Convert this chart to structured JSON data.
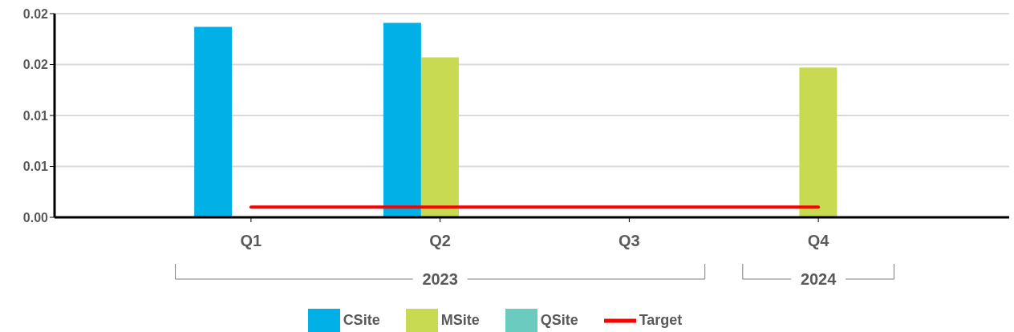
{
  "chart_data": {
    "type": "bar",
    "categories": [
      "Q1",
      "Q2",
      "Q3",
      "Q4"
    ],
    "series": [
      {
        "name": "CSite",
        "color": "#00b0e6",
        "values": [
          0.0187,
          0.0191,
          null,
          null
        ]
      },
      {
        "name": "MSite",
        "color": "#c8d952",
        "values": [
          null,
          0.0157,
          null,
          0.0147
        ]
      },
      {
        "name": "QSite",
        "color": "#6ccbbf",
        "values": [
          null,
          null,
          null,
          null
        ]
      },
      {
        "name": "Target",
        "type": "line",
        "color": "#ff0000",
        "values": [
          0.001,
          0.001,
          0.001,
          0.001
        ]
      }
    ],
    "annotations": [
      "2023",
      "2024"
    ],
    "ylim": [
      0,
      0.02
    ],
    "yticks": [
      {
        "value": 0,
        "label": "0.00"
      },
      {
        "value": 0.005,
        "label": "0.01"
      },
      {
        "value": 0.01,
        "label": "0.01"
      },
      {
        "value": 0.015,
        "label": "0.02"
      },
      {
        "value": 0.02,
        "label": "0.02"
      }
    ],
    "grid": "y",
    "legend": "bottom",
    "marker": "none"
  }
}
